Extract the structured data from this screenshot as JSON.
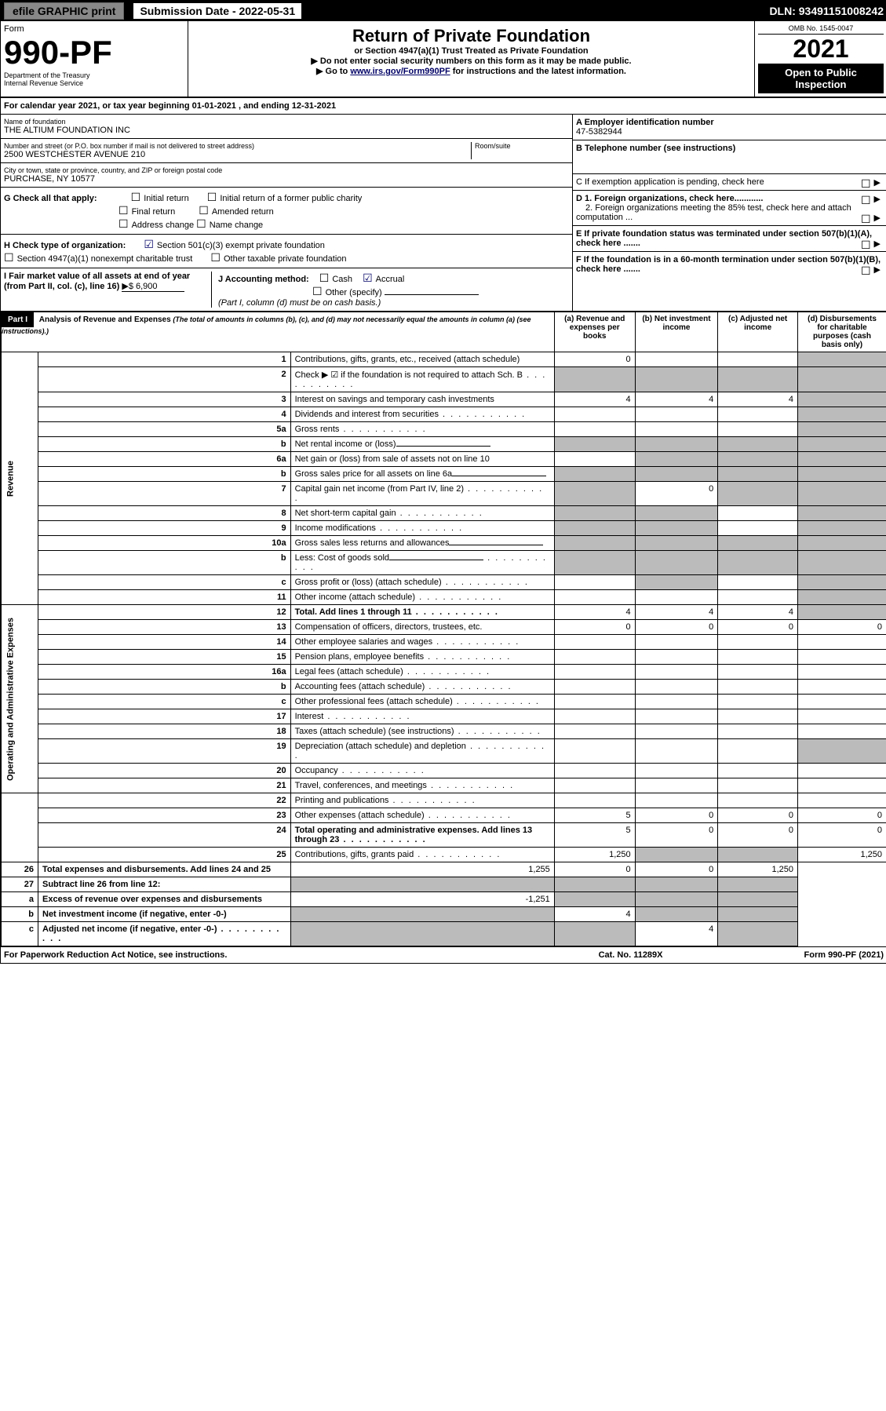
{
  "topbar": {
    "efile": "efile GRAPHIC print",
    "sub_label": "Submission Date - 2022-05-31",
    "dln": "DLN: 93491151008242"
  },
  "header": {
    "form": "Form",
    "form_no": "990-PF",
    "dept": "Department of the Treasury",
    "irs": "Internal Revenue Service",
    "title": "Return of Private Foundation",
    "sub": "or Section 4947(a)(1) Trust Treated as Private Foundation",
    "note1": "▶ Do not enter social security numbers on this form as it may be made public.",
    "note2": "▶ Go to www.irs.gov/Form990PF for instructions and the latest information.",
    "omb": "OMB No. 1545-0047",
    "year": "2021",
    "open": "Open to Public Inspection"
  },
  "calyear": "For calendar year 2021, or tax year beginning 01-01-2021           , and ending 12-31-2021",
  "id": {
    "name_lbl": "Name of foundation",
    "name": "THE ALTIUM FOUNDATION INC",
    "addr_lbl": "Number and street (or P.O. box number if mail is not delivered to street address)",
    "addr": "2500 WESTCHESTER AVENUE 210",
    "room_lbl": "Room/suite",
    "city_lbl": "City or town, state or province, country, and ZIP or foreign postal code",
    "city": "PURCHASE, NY  10577",
    "ein_lbl": "A Employer identification number",
    "ein": "47-5382944",
    "tel_lbl": "B Telephone number (see instructions)",
    "c_lbl": "C If exemption application is pending, check here",
    "d1": "D 1. Foreign organizations, check here............",
    "d2": "2. Foreign organizations meeting the 85% test, check here and attach computation ...",
    "e_lbl": "E  If private foundation status was terminated under section 507(b)(1)(A), check here .......",
    "f_lbl": "F  If the foundation is in a 60-month termination under section 507(b)(1)(B), check here .......",
    "g_lbl": "G Check all that apply:",
    "g_opts": [
      "Initial return",
      "Final return",
      "Address change",
      "Initial return of a former public charity",
      "Amended return",
      "Name change"
    ],
    "h_lbl": "H Check type of organization:",
    "h1": "Section 501(c)(3) exempt private foundation",
    "h2": "Section 4947(a)(1) nonexempt charitable trust",
    "h3": "Other taxable private foundation",
    "i_lbl": "I Fair market value of all assets at end of year (from Part II, col. (c), line 16)",
    "i_val": "▶$  6,900",
    "j_lbl": "J Accounting method:",
    "j1": "Cash",
    "j2": "Accrual",
    "j3": "Other (specify)",
    "j_note": "(Part I, column (d) must be on cash basis.)"
  },
  "part1": {
    "label": "Part I",
    "title": "Analysis of Revenue and Expenses",
    "note": "(The total of amounts in columns (b), (c), and (d) may not necessarily equal the amounts in column (a) (see instructions).)",
    "cols": {
      "a": "(a)   Revenue and expenses per books",
      "b": "(b)   Net investment income",
      "c": "(c)   Adjusted net income",
      "d": "(d)   Disbursements for charitable purposes (cash basis only)"
    }
  },
  "sections": {
    "rev": "Revenue",
    "op": "Operating and Administrative Expenses"
  },
  "rows": [
    {
      "n": "1",
      "t": "Contributions, gifts, grants, etc., received (attach schedule)",
      "a": "0",
      "b": "",
      "c": "",
      "d": "",
      "d_g": true
    },
    {
      "n": "2",
      "t": "Check ▶ ☑ if the foundation is not required to attach Sch. B",
      "dots": true,
      "all_g": true
    },
    {
      "n": "3",
      "t": "Interest on savings and temporary cash investments",
      "a": "4",
      "b": "4",
      "c": "4",
      "d": "",
      "d_g": true
    },
    {
      "n": "4",
      "t": "Dividends and interest from securities",
      "dots": true,
      "d_g": true
    },
    {
      "n": "5a",
      "t": "Gross rents",
      "dots": true,
      "d_g": true
    },
    {
      "n": "b",
      "t": "Net rental income or (loss)",
      "und": true,
      "all_g": true
    },
    {
      "n": "6a",
      "t": "Net gain or (loss) from sale of assets not on line 10",
      "bcd_g": true
    },
    {
      "n": "b",
      "t": "Gross sales price for all assets on line 6a",
      "und": true,
      "all_g": true
    },
    {
      "n": "7",
      "t": "Capital gain net income (from Part IV, line 2)",
      "dots": true,
      "a_g": true,
      "b": "0",
      "cd_g": true
    },
    {
      "n": "8",
      "t": "Net short-term capital gain",
      "dots": true,
      "ab_g": true,
      "d_g": true
    },
    {
      "n": "9",
      "t": "Income modifications",
      "dots": true,
      "ab_g": true,
      "d_g": true
    },
    {
      "n": "10a",
      "t": "Gross sales less returns and allowances",
      "und": true,
      "all_g": true
    },
    {
      "n": "b",
      "t": "Less: Cost of goods sold",
      "dots": true,
      "und": true,
      "all_g": true
    },
    {
      "n": "c",
      "t": "Gross profit or (loss) (attach schedule)",
      "dots": true,
      "b_g": true,
      "d_g": true
    },
    {
      "n": "11",
      "t": "Other income (attach schedule)",
      "dots": true,
      "d_g": true
    },
    {
      "n": "12",
      "t": "Total. Add lines 1 through 11",
      "dots": true,
      "bold": true,
      "a": "4",
      "b": "4",
      "c": "4",
      "d_g": true
    },
    {
      "n": "13",
      "t": "Compensation of officers, directors, trustees, etc.",
      "a": "0",
      "b": "0",
      "c": "0",
      "d": "0"
    },
    {
      "n": "14",
      "t": "Other employee salaries and wages",
      "dots": true
    },
    {
      "n": "15",
      "t": "Pension plans, employee benefits",
      "dots": true
    },
    {
      "n": "16a",
      "t": "Legal fees (attach schedule)",
      "dots": true
    },
    {
      "n": "b",
      "t": "Accounting fees (attach schedule)",
      "dots": true
    },
    {
      "n": "c",
      "t": "Other professional fees (attach schedule)",
      "dots": true
    },
    {
      "n": "17",
      "t": "Interest",
      "dots": true
    },
    {
      "n": "18",
      "t": "Taxes (attach schedule) (see instructions)",
      "dots": true
    },
    {
      "n": "19",
      "t": "Depreciation (attach schedule) and depletion",
      "dots": true,
      "d_g": true
    },
    {
      "n": "20",
      "t": "Occupancy",
      "dots": true
    },
    {
      "n": "21",
      "t": "Travel, conferences, and meetings",
      "dots": true
    },
    {
      "n": "22",
      "t": "Printing and publications",
      "dots": true
    },
    {
      "n": "23",
      "t": "Other expenses (attach schedule)",
      "dots": true,
      "a": "5",
      "b": "0",
      "c": "0",
      "d": "0"
    },
    {
      "n": "24",
      "t": "Total operating and administrative expenses. Add lines 13 through 23",
      "dots": true,
      "bold": true,
      "a": "5",
      "b": "0",
      "c": "0",
      "d": "0"
    },
    {
      "n": "25",
      "t": "Contributions, gifts, grants paid",
      "dots": true,
      "a": "1,250",
      "bc_g": true,
      "d": "1,250"
    },
    {
      "n": "26",
      "t": "Total expenses and disbursements. Add lines 24 and 25",
      "bold": true,
      "a": "1,255",
      "b": "0",
      "c": "0",
      "d": "1,250"
    },
    {
      "n": "27",
      "t": "Subtract line 26 from line 12:",
      "bold": true,
      "all_g": true
    },
    {
      "n": "a",
      "t": "Excess of revenue over expenses and disbursements",
      "bold": true,
      "a": "-1,251",
      "bcd_g": true
    },
    {
      "n": "b",
      "t": "Net investment income (if negative, enter -0-)",
      "bold": true,
      "a_g": true,
      "b": "4",
      "cd_g": true
    },
    {
      "n": "c",
      "t": "Adjusted net income (if negative, enter -0-)",
      "dots": true,
      "bold": true,
      "ab_g": true,
      "c": "4",
      "d_g": true
    }
  ],
  "footer": {
    "left": "For Paperwork Reduction Act Notice, see instructions.",
    "mid": "Cat. No. 11289X",
    "right": "Form 990-PF (2021)"
  }
}
